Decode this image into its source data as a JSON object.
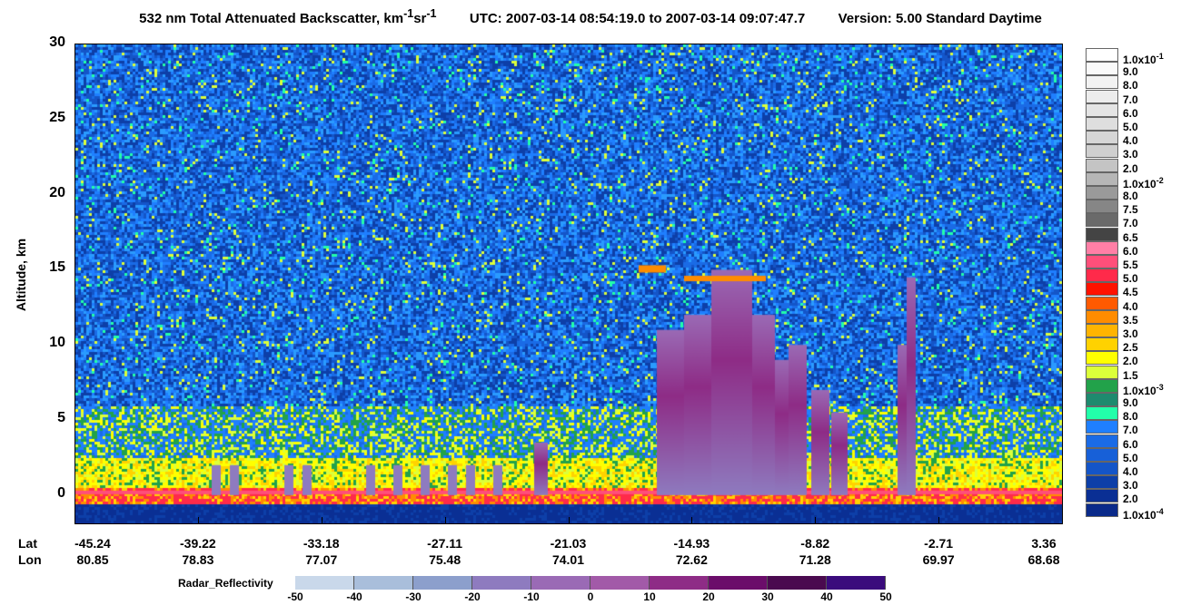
{
  "title": {
    "main": "532 nm Total Attenuated Backscatter, km",
    "sup1": "-1",
    "mid": " sr",
    "sup2": "-1",
    "utc": "UTC:  2007-03-14 08:54:19.0  to  2007-03-14 09:07:47.7",
    "version": "Version: 5.00  Standard  Daytime"
  },
  "axes": {
    "ylabel": "Altitude, km",
    "lat_label": "Lat",
    "lon_label": "Lon"
  },
  "chart_data": {
    "type": "heatmap",
    "title": "532 nm Total Attenuated Backscatter, km-1 sr-1",
    "ylabel": "Altitude, km",
    "ylim": [
      -2,
      30
    ],
    "yticks": [
      "0",
      "5",
      "10",
      "15",
      "20",
      "25",
      "30"
    ],
    "x_ticks": [
      {
        "lat": "-45.24",
        "lon": "80.85"
      },
      {
        "lat": "-39.22",
        "lon": "78.83"
      },
      {
        "lat": "-33.18",
        "lon": "77.07"
      },
      {
        "lat": "-27.11",
        "lon": "75.48"
      },
      {
        "lat": "-21.03",
        "lon": "74.01"
      },
      {
        "lat": "-14.93",
        "lon": "72.62"
      },
      {
        "lat": "-8.82",
        "lon": "71.28"
      },
      {
        "lat": "-2.71",
        "lon": "69.97"
      },
      {
        "lat": "3.36",
        "lon": "68.68"
      }
    ],
    "colorbar": [
      {
        "label": "1.0x10",
        "exp": "-1",
        "color": "#ffffff"
      },
      {
        "label": "9.0",
        "color": "#f9f9f9"
      },
      {
        "label": "8.0",
        "color": "#f2f2f2"
      },
      {
        "label": "7.0",
        "color": "#ececec"
      },
      {
        "label": "6.0",
        "color": "#e4e4e4"
      },
      {
        "label": "5.0",
        "color": "#dedede"
      },
      {
        "label": "4.0",
        "color": "#d6d6d6"
      },
      {
        "label": "3.0",
        "color": "#cfcfcf"
      },
      {
        "label": "2.0",
        "color": "#c4c4c4"
      },
      {
        "label": "1.0x10",
        "exp": "-2",
        "color": "#b6b6b6"
      },
      {
        "label": "8.0",
        "color": "#9a9a9a"
      },
      {
        "label": "7.5",
        "color": "#868686"
      },
      {
        "label": "7.0",
        "color": "#6a6a6a"
      },
      {
        "label": "6.5",
        "color": "#444444"
      },
      {
        "label": "6.0",
        "color": "#ff7fa6"
      },
      {
        "label": "5.5",
        "color": "#ff4f7a"
      },
      {
        "label": "5.0",
        "color": "#ff2a4a"
      },
      {
        "label": "4.5",
        "color": "#ff1200"
      },
      {
        "label": "4.0",
        "color": "#ff5a00"
      },
      {
        "label": "3.5",
        "color": "#ff8c00"
      },
      {
        "label": "3.0",
        "color": "#ffb400"
      },
      {
        "label": "2.5",
        "color": "#ffd200"
      },
      {
        "label": "2.0",
        "color": "#ffff00"
      },
      {
        "label": "1.5",
        "color": "#dcff3a"
      },
      {
        "label": "1.0x10",
        "exp": "-3",
        "color": "#22a24a"
      },
      {
        "label": "9.0",
        "color": "#1e8a6e"
      },
      {
        "label": "8.0",
        "color": "#22ffaa"
      },
      {
        "label": "7.0",
        "color": "#1f7fff"
      },
      {
        "label": "6.0",
        "color": "#1a6be6"
      },
      {
        "label": "5.0",
        "color": "#1760d8"
      },
      {
        "label": "4.0",
        "color": "#1455c8"
      },
      {
        "label": "3.0",
        "color": "#0d3fa8"
      },
      {
        "label": "2.0",
        "color": "#0a2f94"
      },
      {
        "label": "1.0x10",
        "exp": "-4",
        "color": "#0a2a8a"
      }
    ],
    "radar": {
      "label": "Radar_Reflectivity",
      "ticks": [
        "-50",
        "-40",
        "-30",
        "-20",
        "-10",
        "0",
        "10",
        "20",
        "30",
        "40",
        "50"
      ],
      "colors": [
        "#c9d8ea",
        "#a9bedb",
        "#8c9fcc",
        "#8e7bbf",
        "#9a6ab5",
        "#a25aa8",
        "#8e2c86",
        "#6b0d6a",
        "#4a0a4f",
        "#3a0b7c"
      ]
    }
  }
}
